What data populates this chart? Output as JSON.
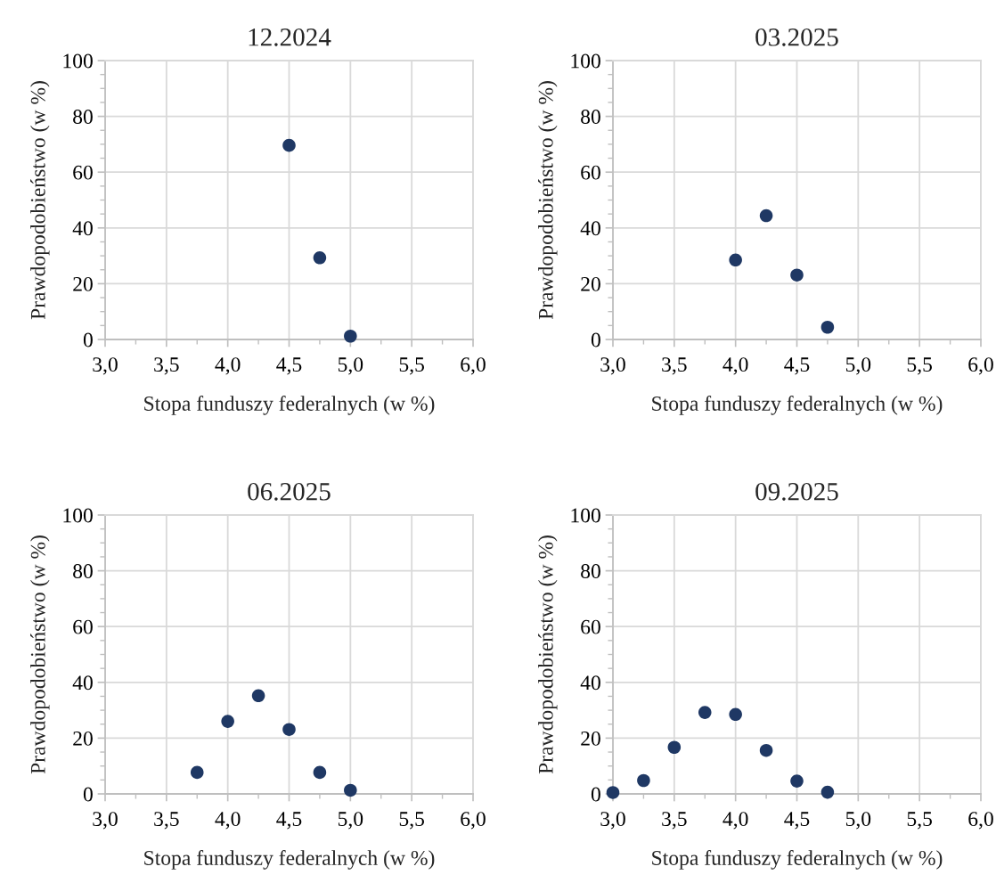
{
  "chart_data": [
    {
      "type": "scatter",
      "title": "12.2024",
      "xlabel": "Stopa funduszy federalnych (w %)",
      "ylabel": "Prawdopodobieństwo (w %)",
      "marker": "circle",
      "grid": true,
      "x": [
        4.5,
        4.75,
        5.0
      ],
      "series": [
        {
          "color": "#1f3864",
          "values": [
            69.6,
            29.3,
            1.2
          ]
        }
      ],
      "xlim": [
        3,
        6
      ],
      "ylim": [
        0,
        100
      ],
      "xticks": [
        {
          "value": 3,
          "label": "3,0"
        },
        {
          "value": 3.25,
          "label": null
        },
        {
          "value": 3.5,
          "label": "3,5"
        },
        {
          "value": 3.75,
          "label": null
        },
        {
          "value": 4,
          "label": "4,0"
        },
        {
          "value": 4.25,
          "label": null
        },
        {
          "value": 4.5,
          "label": "4,5"
        },
        {
          "value": 4.75,
          "label": null
        },
        {
          "value": 5,
          "label": "5,0"
        },
        {
          "value": 5.25,
          "label": null
        },
        {
          "value": 5.5,
          "label": "5,5"
        },
        {
          "value": 5.75,
          "label": null
        },
        {
          "value": 6,
          "label": "6,0"
        }
      ],
      "yticks": [
        0,
        {
          "value": 5,
          "label": null
        },
        {
          "value": 10,
          "label": null
        },
        {
          "value": 15,
          "label": null
        },
        20,
        {
          "value": 25,
          "label": null
        },
        {
          "value": 30,
          "label": null
        },
        {
          "value": 35,
          "label": null
        },
        40,
        {
          "value": 45,
          "label": null
        },
        {
          "value": 50,
          "label": null
        },
        {
          "value": 55,
          "label": null
        },
        60,
        {
          "value": 65,
          "label": null
        },
        {
          "value": 70,
          "label": null
        },
        {
          "value": 75,
          "label": null
        },
        80,
        {
          "value": 85,
          "label": null
        },
        {
          "value": 90,
          "label": null
        },
        {
          "value": 95,
          "label": null
        },
        100
      ]
    },
    {
      "type": "scatter",
      "title": "03.2025",
      "xlabel": "Stopa funduszy federalnych (w %)",
      "ylabel": "Prawdopodobieństwo (w %)",
      "marker": "circle",
      "grid": true,
      "x": [
        4.0,
        4.25,
        4.5,
        4.75
      ],
      "series": [
        {
          "color": "#1f3864",
          "values": [
            28.5,
            44.4,
            23.1,
            4.4
          ]
        }
      ],
      "xlim": [
        3,
        6
      ],
      "ylim": [
        0,
        100
      ],
      "xticks": [
        {
          "value": 3,
          "label": "3,0"
        },
        {
          "value": 3.25,
          "label": null
        },
        {
          "value": 3.5,
          "label": "3,5"
        },
        {
          "value": 3.75,
          "label": null
        },
        {
          "value": 4,
          "label": "4,0"
        },
        {
          "value": 4.25,
          "label": null
        },
        {
          "value": 4.5,
          "label": "4,5"
        },
        {
          "value": 4.75,
          "label": null
        },
        {
          "value": 5,
          "label": "5,0"
        },
        {
          "value": 5.25,
          "label": null
        },
        {
          "value": 5.5,
          "label": "5,5"
        },
        {
          "value": 5.75,
          "label": null
        },
        {
          "value": 6,
          "label": "6,0"
        }
      ],
      "yticks": [
        0,
        {
          "value": 5,
          "label": null
        },
        {
          "value": 10,
          "label": null
        },
        {
          "value": 15,
          "label": null
        },
        20,
        {
          "value": 25,
          "label": null
        },
        {
          "value": 30,
          "label": null
        },
        {
          "value": 35,
          "label": null
        },
        40,
        {
          "value": 45,
          "label": null
        },
        {
          "value": 50,
          "label": null
        },
        {
          "value": 55,
          "label": null
        },
        60,
        {
          "value": 65,
          "label": null
        },
        {
          "value": 70,
          "label": null
        },
        {
          "value": 75,
          "label": null
        },
        80,
        {
          "value": 85,
          "label": null
        },
        {
          "value": 90,
          "label": null
        },
        {
          "value": 95,
          "label": null
        },
        100
      ]
    },
    {
      "type": "scatter",
      "title": "06.2025",
      "xlabel": "Stopa funduszy federalnych (w %)",
      "ylabel": "Prawdopodobieństwo (w %)",
      "marker": "circle",
      "grid": true,
      "x": [
        3.75,
        4.0,
        4.25,
        4.5,
        4.75,
        5.0
      ],
      "series": [
        {
          "color": "#1f3864",
          "values": [
            7.7,
            26.0,
            35.2,
            23.1,
            7.7,
            1.3
          ]
        }
      ],
      "xlim": [
        3,
        6
      ],
      "ylim": [
        0,
        100
      ],
      "xticks": [
        {
          "value": 3,
          "label": "3,0"
        },
        {
          "value": 3.25,
          "label": null
        },
        {
          "value": 3.5,
          "label": "3,5"
        },
        {
          "value": 3.75,
          "label": null
        },
        {
          "value": 4,
          "label": "4,0"
        },
        {
          "value": 4.25,
          "label": null
        },
        {
          "value": 4.5,
          "label": "4,5"
        },
        {
          "value": 4.75,
          "label": null
        },
        {
          "value": 5,
          "label": "5,0"
        },
        {
          "value": 5.25,
          "label": null
        },
        {
          "value": 5.5,
          "label": "5,5"
        },
        {
          "value": 5.75,
          "label": null
        },
        {
          "value": 6,
          "label": "6,0"
        }
      ],
      "yticks": [
        0,
        {
          "value": 5,
          "label": null
        },
        {
          "value": 10,
          "label": null
        },
        {
          "value": 15,
          "label": null
        },
        20,
        {
          "value": 25,
          "label": null
        },
        {
          "value": 30,
          "label": null
        },
        {
          "value": 35,
          "label": null
        },
        40,
        {
          "value": 45,
          "label": null
        },
        {
          "value": 50,
          "label": null
        },
        {
          "value": 55,
          "label": null
        },
        60,
        {
          "value": 65,
          "label": null
        },
        {
          "value": 70,
          "label": null
        },
        {
          "value": 75,
          "label": null
        },
        80,
        {
          "value": 85,
          "label": null
        },
        {
          "value": 90,
          "label": null
        },
        {
          "value": 95,
          "label": null
        },
        100
      ]
    },
    {
      "type": "scatter",
      "title": "09.2025",
      "xlabel": "Stopa funduszy federalnych (w %)",
      "ylabel": "Prawdopodobieństwo (w %)",
      "marker": "circle",
      "grid": true,
      "x": [
        3.0,
        3.25,
        3.5,
        3.75,
        4.0,
        4.25,
        4.5,
        4.75
      ],
      "series": [
        {
          "color": "#1f3864",
          "values": [
            0.5,
            4.8,
            16.7,
            29.2,
            28.5,
            15.6,
            4.6,
            0.6
          ]
        }
      ],
      "xlim": [
        3,
        6
      ],
      "ylim": [
        0,
        100
      ],
      "xticks": [
        {
          "value": 3,
          "label": "3,0"
        },
        {
          "value": 3.25,
          "label": null
        },
        {
          "value": 3.5,
          "label": "3,5"
        },
        {
          "value": 3.75,
          "label": null
        },
        {
          "value": 4,
          "label": "4,0"
        },
        {
          "value": 4.25,
          "label": null
        },
        {
          "value": 4.5,
          "label": "4,5"
        },
        {
          "value": 4.75,
          "label": null
        },
        {
          "value": 5,
          "label": "5,0"
        },
        {
          "value": 5.25,
          "label": null
        },
        {
          "value": 5.5,
          "label": "5,5"
        },
        {
          "value": 5.75,
          "label": null
        },
        {
          "value": 6,
          "label": "6,0"
        }
      ],
      "yticks": [
        0,
        {
          "value": 5,
          "label": null
        },
        {
          "value": 10,
          "label": null
        },
        {
          "value": 15,
          "label": null
        },
        20,
        {
          "value": 25,
          "label": null
        },
        {
          "value": 30,
          "label": null
        },
        {
          "value": 35,
          "label": null
        },
        40,
        {
          "value": 45,
          "label": null
        },
        {
          "value": 50,
          "label": null
        },
        {
          "value": 55,
          "label": null
        },
        60,
        {
          "value": 65,
          "label": null
        },
        {
          "value": 70,
          "label": null
        },
        {
          "value": 75,
          "label": null
        },
        80,
        {
          "value": 85,
          "label": null
        },
        {
          "value": 90,
          "label": null
        },
        {
          "value": 95,
          "label": null
        },
        100
      ]
    }
  ]
}
